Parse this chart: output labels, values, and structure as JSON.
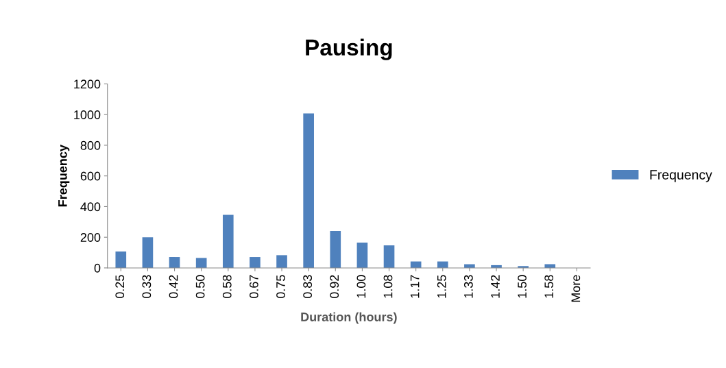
{
  "chart_data": {
    "type": "bar",
    "title": "Pausing",
    "xlabel": "Duration (hours)",
    "ylabel": "Frequency",
    "categories": [
      "0.25",
      "0.33",
      "0.42",
      "0.50",
      "0.58",
      "0.67",
      "0.75",
      "0.83",
      "0.92",
      "1.00",
      "1.08",
      "1.17",
      "1.25",
      "1.33",
      "1.42",
      "1.50",
      "1.58",
      "More"
    ],
    "series": [
      {
        "name": "Frequency",
        "color": "#4f81bd",
        "values": [
          107,
          200,
          71,
          65,
          346,
          71,
          83,
          1008,
          241,
          165,
          147,
          42,
          42,
          24,
          18,
          12,
          24,
          0
        ]
      }
    ],
    "ylim": [
      0,
      1200
    ],
    "yticks": [
      0,
      200,
      400,
      600,
      800,
      1000,
      1200
    ],
    "grid": false,
    "legend": "right"
  }
}
